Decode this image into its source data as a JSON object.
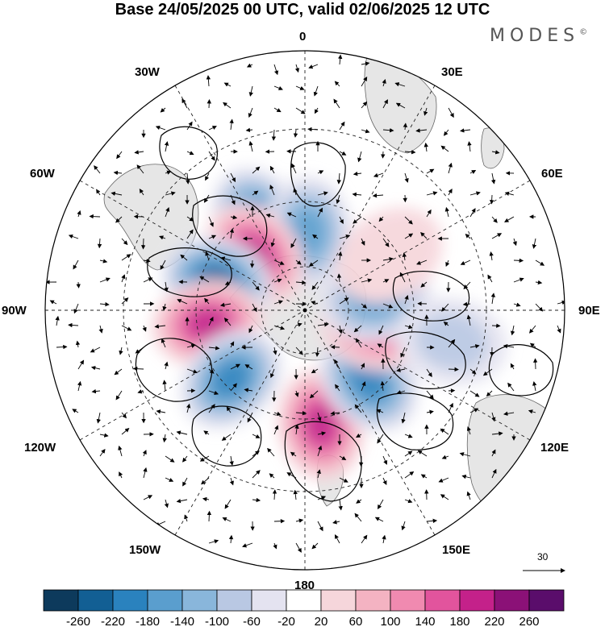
{
  "title": "Base 24/05/2025 00 UTC, valid 02/06/2025 12 UTC",
  "brand": {
    "name": "MODES",
    "mark": "©"
  },
  "longitudes": {
    "n": "0",
    "nne": "30E",
    "ne": "60E",
    "e": "90E",
    "ese": "120E",
    "sse": "150E",
    "s": "180",
    "ssw": "150W",
    "wsw": "120W",
    "w": "90W",
    "wnw": "60W",
    "nnw": "30W"
  },
  "vector_reference": "30",
  "colorbar": {
    "ticks": [
      "-260",
      "-220",
      "-180",
      "-140",
      "-100",
      "-60",
      "-20",
      "20",
      "60",
      "100",
      "140",
      "180",
      "220",
      "260"
    ],
    "colors": [
      "#0d3a5c",
      "#125f94",
      "#2a82be",
      "#5a9ece",
      "#89b6db",
      "#b9c8e3",
      "#e4e3f0",
      "#ffffff",
      "#f6d6db",
      "#f4b3c2",
      "#f08ab0",
      "#e2549d",
      "#c4218a",
      "#8b1177",
      "#5a0d6b"
    ]
  },
  "chart_data": {
    "type": "heatmap",
    "projection": "south-polar-stereographic",
    "field_centers": [
      {
        "lon": -28,
        "lat": -55,
        "value": -180
      },
      {
        "lon": 2,
        "lat": -63,
        "value": -150
      },
      {
        "lon": -42,
        "lat": -64,
        "value": 200
      },
      {
        "lon": -72,
        "lat": -58,
        "value": -220
      },
      {
        "lon": -98,
        "lat": -56,
        "value": 190
      },
      {
        "lon": -133,
        "lat": -55,
        "value": -180
      },
      {
        "lon": 172,
        "lat": -50,
        "value": 180
      },
      {
        "lon": 138,
        "lat": -57,
        "value": -200
      },
      {
        "lon": 103,
        "lat": -65,
        "value": 150
      },
      {
        "lon": 80,
        "lat": -65,
        "value": -150
      },
      {
        "lon": 102,
        "lat": -38,
        "value": -80
      },
      {
        "lon": 57,
        "lat": -55,
        "value": 40
      }
    ]
  }
}
